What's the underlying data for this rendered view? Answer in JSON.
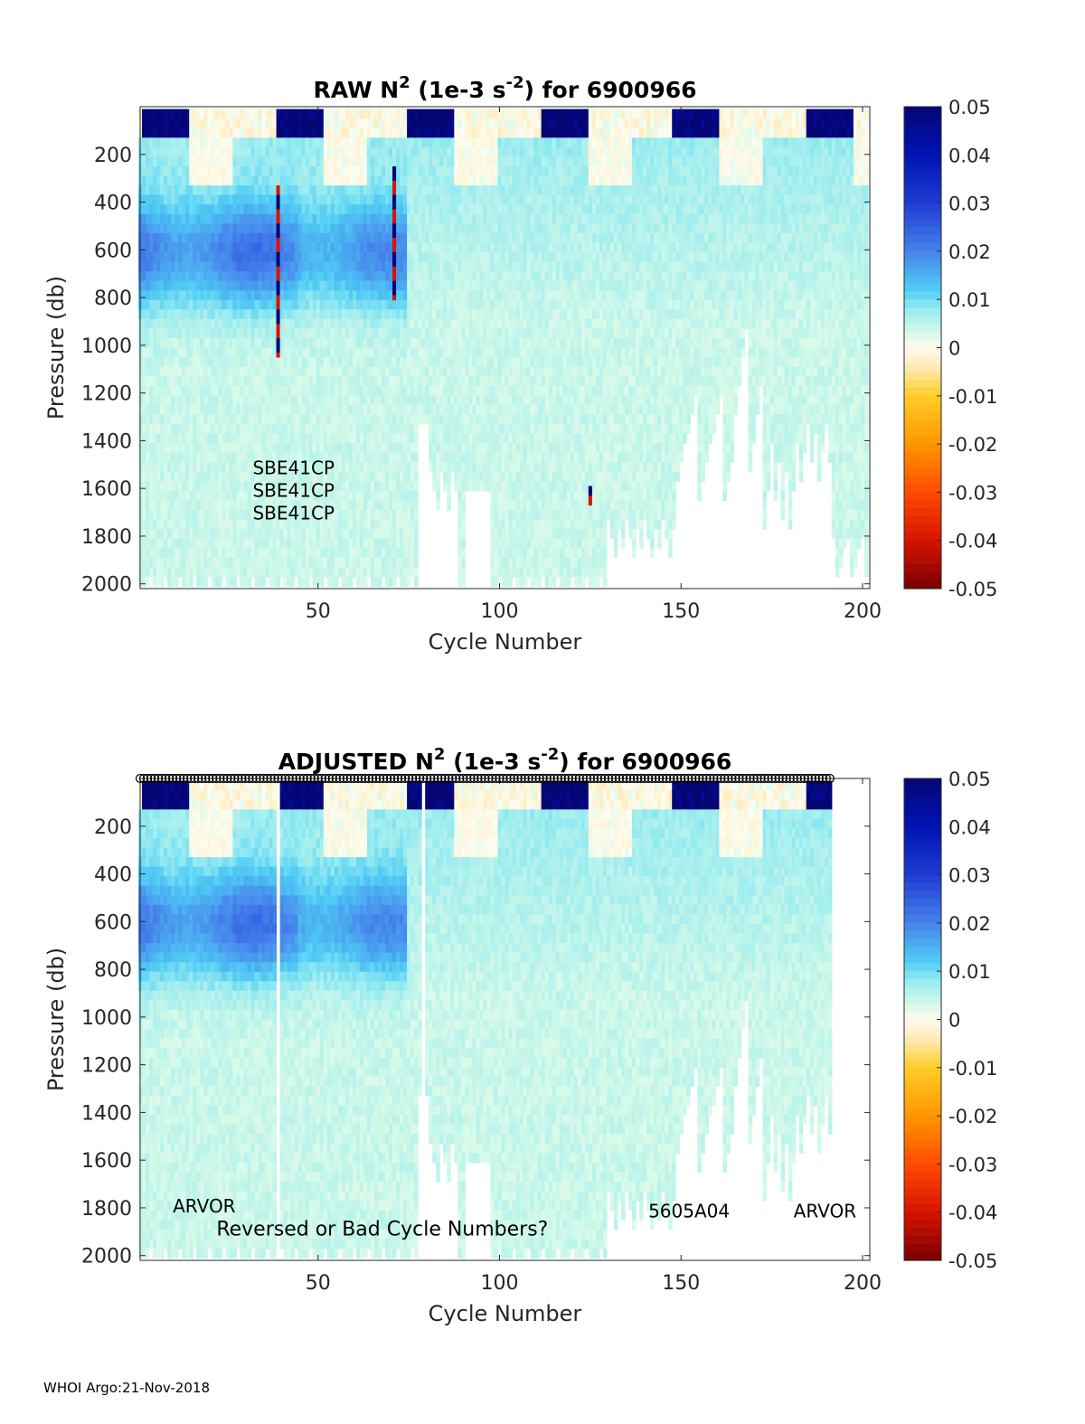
{
  "footer": "WHOI Argo:21-Nov-2018",
  "chart_data": [
    {
      "type": "heatmap",
      "title_parts": [
        "RAW N",
        "2",
        " (1e-3 s",
        "-2",
        ") for 6900966"
      ],
      "xlabel": "Cycle Number",
      "ylabel": "Pressure (db)",
      "xlim": [
        1,
        202
      ],
      "ylim": [
        0,
        2020
      ],
      "y_reversed": true,
      "xticks": [
        50,
        100,
        150,
        200
      ],
      "yticks": [
        200,
        400,
        600,
        800,
        1000,
        1200,
        1400,
        1600,
        1800,
        2000
      ],
      "colorbar": {
        "min": -0.05,
        "max": 0.05,
        "ticks": [
          0.05,
          0.04,
          0.03,
          0.02,
          0.01,
          0,
          -0.01,
          -0.02,
          -0.03,
          -0.04,
          -0.05
        ],
        "tick_labels": [
          "0.05",
          "0.04",
          "0.03",
          "0.02",
          "0.01",
          "0",
          "-0.01",
          "-0.02",
          "-0.03",
          "-0.04",
          "-0.05"
        ]
      },
      "annotations": [
        {
          "text": "SBE41CP",
          "x": 32,
          "y": 1540
        },
        {
          "text": "SBE41CP",
          "x": 32,
          "y": 1635
        },
        {
          "text": "SBE41CP",
          "x": 32,
          "y": 1730
        }
      ],
      "marker_row": false,
      "spikes": [
        {
          "cycle": 39,
          "pmin": 330,
          "pmax": 1050
        },
        {
          "cycle": 71,
          "pmin": 250,
          "pmax": 800
        },
        {
          "cycle": 125,
          "pmin": 1590,
          "pmax": 1660
        }
      ]
    },
    {
      "type": "heatmap",
      "title_parts": [
        "ADJUSTED N",
        "2",
        " (1e-3 s",
        "-2",
        ") for 6900966"
      ],
      "xlabel": "Cycle Number",
      "ylabel": "Pressure (db)",
      "xlim": [
        1,
        202
      ],
      "ylim": [
        0,
        2020
      ],
      "y_reversed": true,
      "xticks": [
        50,
        100,
        150,
        200
      ],
      "yticks": [
        200,
        400,
        600,
        800,
        1000,
        1200,
        1400,
        1600,
        1800,
        2000
      ],
      "colorbar": {
        "min": -0.05,
        "max": 0.05,
        "ticks": [
          0.05,
          0.04,
          0.03,
          0.02,
          0.01,
          0,
          -0.01,
          -0.02,
          -0.03,
          -0.04,
          -0.05
        ],
        "tick_labels": [
          "0.05",
          "0.04",
          "0.03",
          "0.02",
          "0.01",
          "0",
          "-0.01",
          "-0.02",
          "-0.03",
          "-0.04",
          "-0.05"
        ]
      },
      "annotations": [
        {
          "text": "ARVOR",
          "x": 10,
          "y": 1820
        },
        {
          "text": "Reversed or Bad Cycle Numbers?",
          "x": 22,
          "y": 1915
        },
        {
          "text": "5605A04",
          "x": 141,
          "y": 1840
        },
        {
          "text": "ARVOR",
          "x": 181,
          "y": 1840
        }
      ],
      "marker_row": true,
      "spikes": []
    }
  ]
}
